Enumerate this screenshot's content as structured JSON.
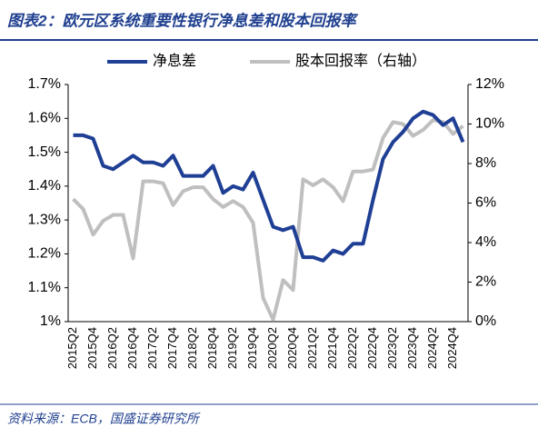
{
  "chart_data": {
    "type": "line",
    "title": "图表2：欧元区系统重要性银行净息差和股本回报率",
    "source": "资料来源：ECB，国盛证券研究所",
    "categories": [
      "2015Q2",
      null,
      "2015Q4",
      null,
      "2016Q2",
      null,
      "2016Q4",
      null,
      "2017Q2",
      null,
      "2017Q4",
      null,
      "2018Q2",
      null,
      "2018Q4",
      null,
      "2019Q2",
      null,
      "2019Q4",
      null,
      "2020Q2",
      null,
      "2020Q4",
      null,
      "2021Q2",
      null,
      "2021Q4",
      null,
      "2022Q2",
      null,
      "2022Q4",
      null,
      "2023Q2",
      null,
      "2023Q4",
      null,
      "2024Q2",
      null,
      "2024Q4",
      null
    ],
    "series": [
      {
        "name": "净息差",
        "color": "#1f3f95",
        "values": [
          1.55,
          1.55,
          1.54,
          1.46,
          1.45,
          1.47,
          1.49,
          1.47,
          1.47,
          1.46,
          1.49,
          1.43,
          1.43,
          1.43,
          1.46,
          1.38,
          1.4,
          1.39,
          1.44,
          1.36,
          1.28,
          1.27,
          1.28,
          1.19,
          1.19,
          1.18,
          1.21,
          1.2,
          1.23,
          1.23,
          1.36,
          1.48,
          1.53,
          1.56,
          1.6,
          1.62,
          1.61,
          1.58,
          1.6,
          1.53
        ]
      },
      {
        "name": "股本回报率（右轴）",
        "color": "#bfbfbf",
        "axis": "y2",
        "values": [
          6.2,
          5.7,
          4.4,
          5.1,
          5.4,
          5.4,
          3.2,
          7.1,
          7.1,
          7.0,
          5.9,
          6.6,
          6.8,
          6.8,
          6.2,
          5.8,
          6.1,
          5.8,
          5.0,
          1.2,
          0.1,
          2.1,
          1.6,
          7.2,
          6.9,
          7.2,
          6.8,
          6.1,
          7.6,
          7.6,
          7.7,
          9.3,
          10.1,
          10.0,
          9.4,
          9.7,
          10.2,
          10.1,
          9.5,
          9.9
        ]
      }
    ],
    "ylim": [
      1.0,
      1.7
    ],
    "yticks": [
      {
        "value": 1.0,
        "label": "1%"
      },
      {
        "value": 1.1,
        "label": "1.1%"
      },
      {
        "value": 1.2,
        "label": "1.2%"
      },
      {
        "value": 1.3,
        "label": "1.3%"
      },
      {
        "value": 1.4,
        "label": "1.4%"
      },
      {
        "value": 1.5,
        "label": "1.5%"
      },
      {
        "value": 1.6,
        "label": "1.6%"
      },
      {
        "value": 1.7,
        "label": "1.7%"
      }
    ],
    "y2lim": [
      0,
      12
    ],
    "y2ticks": [
      {
        "value": 0,
        "label": "0%"
      },
      {
        "value": 2,
        "label": "2%"
      },
      {
        "value": 4,
        "label": "4%"
      },
      {
        "value": 6,
        "label": "6%"
      },
      {
        "value": 8,
        "label": "8%"
      },
      {
        "value": 10,
        "label": "10%"
      },
      {
        "value": 12,
        "label": "12%"
      }
    ],
    "legend": "top"
  }
}
